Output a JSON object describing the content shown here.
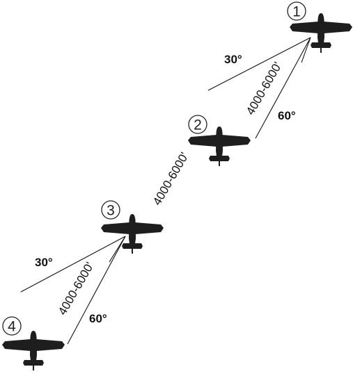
{
  "diagram": {
    "aircraft": [
      {
        "number": "1"
      },
      {
        "number": "2"
      },
      {
        "number": "3"
      },
      {
        "number": "4"
      }
    ],
    "labels": {
      "angle_30_upper": "30°",
      "angle_60_upper": "60°",
      "angle_30_lower": "30°",
      "angle_60_lower": "60°",
      "distance_1_2": "4000-6000'",
      "distance_2_3": "4000-6000'",
      "distance_3_4": "4000-6000'"
    },
    "colors": {
      "aircraft_fill": "#1e1e1e",
      "line_color": "#111111",
      "background": "#ffffff"
    }
  }
}
